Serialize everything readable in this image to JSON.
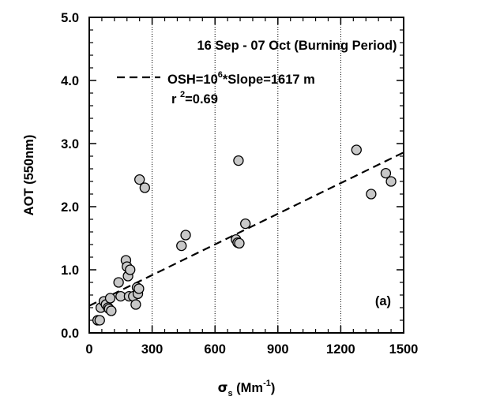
{
  "chart_data": {
    "type": "scatter",
    "title": "16 Sep - 07 Oct (Burning Period)",
    "xlabel": {
      "symbol": "σ",
      "sub": "s",
      "unit_pre": " (Mm",
      "unit_sup": "-1",
      "unit_post": ")"
    },
    "ylabel": "AOT (550nm)",
    "xlim": [
      0,
      1500
    ],
    "ylim": [
      0,
      5
    ],
    "xticks": [
      0,
      300,
      600,
      900,
      1200,
      1500
    ],
    "xtick_labels": [
      "0",
      "300",
      "600",
      "900",
      "1200",
      "1500"
    ],
    "yticks": [
      0,
      1,
      2,
      3,
      4,
      5
    ],
    "ytick_labels": [
      "0.0",
      "1.0",
      "2.0",
      "3.0",
      "4.0",
      "5.0"
    ],
    "vertical_gridlines_x": [
      300,
      600,
      900,
      1200
    ],
    "points": [
      {
        "x": 40,
        "y": 0.2
      },
      {
        "x": 50,
        "y": 0.2
      },
      {
        "x": 55,
        "y": 0.4
      },
      {
        "x": 70,
        "y": 0.5
      },
      {
        "x": 80,
        "y": 0.45
      },
      {
        "x": 90,
        "y": 0.4
      },
      {
        "x": 95,
        "y": 0.38
      },
      {
        "x": 100,
        "y": 0.55
      },
      {
        "x": 105,
        "y": 0.35
      },
      {
        "x": 140,
        "y": 0.8
      },
      {
        "x": 150,
        "y": 0.58
      },
      {
        "x": 175,
        "y": 1.15
      },
      {
        "x": 180,
        "y": 1.05
      },
      {
        "x": 185,
        "y": 0.9
      },
      {
        "x": 190,
        "y": 0.58
      },
      {
        "x": 195,
        "y": 1.0
      },
      {
        "x": 210,
        "y": 0.58
      },
      {
        "x": 222,
        "y": 0.45
      },
      {
        "x": 228,
        "y": 0.72
      },
      {
        "x": 232,
        "y": 0.62
      },
      {
        "x": 237,
        "y": 0.7
      },
      {
        "x": 240,
        "y": 2.43
      },
      {
        "x": 265,
        "y": 2.3
      },
      {
        "x": 440,
        "y": 1.38
      },
      {
        "x": 460,
        "y": 1.55
      },
      {
        "x": 700,
        "y": 1.48
      },
      {
        "x": 708,
        "y": 1.43
      },
      {
        "x": 712,
        "y": 2.73
      },
      {
        "x": 716,
        "y": 1.42
      },
      {
        "x": 745,
        "y": 1.73
      },
      {
        "x": 1275,
        "y": 2.9
      },
      {
        "x": 1345,
        "y": 2.2
      },
      {
        "x": 1415,
        "y": 2.53
      },
      {
        "x": 1440,
        "y": 2.4
      }
    ],
    "fit_line": {
      "style": "dashed",
      "x": [
        0,
        1500
      ],
      "y": [
        0.43,
        2.86
      ]
    },
    "annotations": {
      "legend_text": {
        "pre": "OSH=10",
        "sup": "6",
        "post": "*Slope=1617 m"
      },
      "r2_text": {
        "pre": "r ",
        "sup": "2",
        "post": "=0.69"
      },
      "panel_label": "(a)"
    },
    "grid": "vertical dotted",
    "legend_position": "top-left"
  }
}
